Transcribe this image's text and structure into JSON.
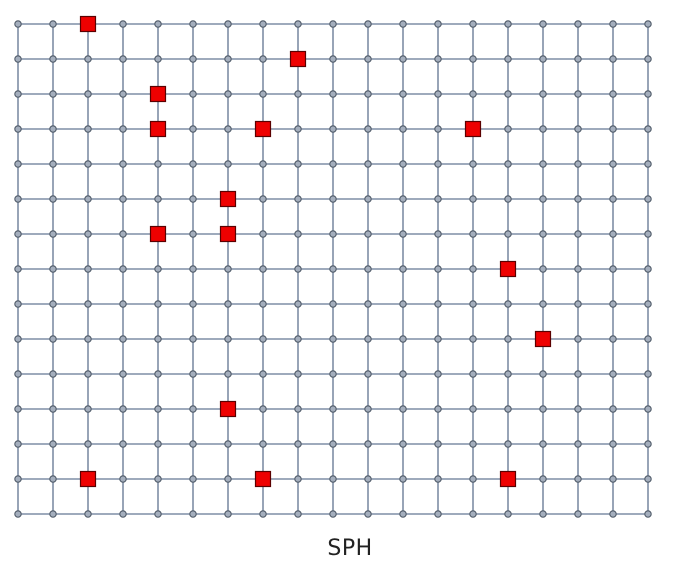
{
  "caption": "SPH",
  "grid": {
    "columns": 19,
    "rows": 15
  },
  "colors": {
    "line": "#7f8ea5",
    "node_fill": "#a4aebd",
    "node_stroke": "#4f5a68",
    "marker_fill": "#ee0000",
    "marker_stroke": "#5a0000"
  },
  "markers": [
    {
      "col": 2,
      "row": 0
    },
    {
      "col": 8,
      "row": 1
    },
    {
      "col": 4,
      "row": 2
    },
    {
      "col": 4,
      "row": 3
    },
    {
      "col": 7,
      "row": 3
    },
    {
      "col": 13,
      "row": 3
    },
    {
      "col": 6,
      "row": 5
    },
    {
      "col": 4,
      "row": 6
    },
    {
      "col": 6,
      "row": 6
    },
    {
      "col": 14,
      "row": 7
    },
    {
      "col": 15,
      "row": 9
    },
    {
      "col": 6,
      "row": 11
    },
    {
      "col": 2,
      "row": 13
    },
    {
      "col": 7,
      "row": 13
    },
    {
      "col": 14,
      "row": 13
    }
  ]
}
